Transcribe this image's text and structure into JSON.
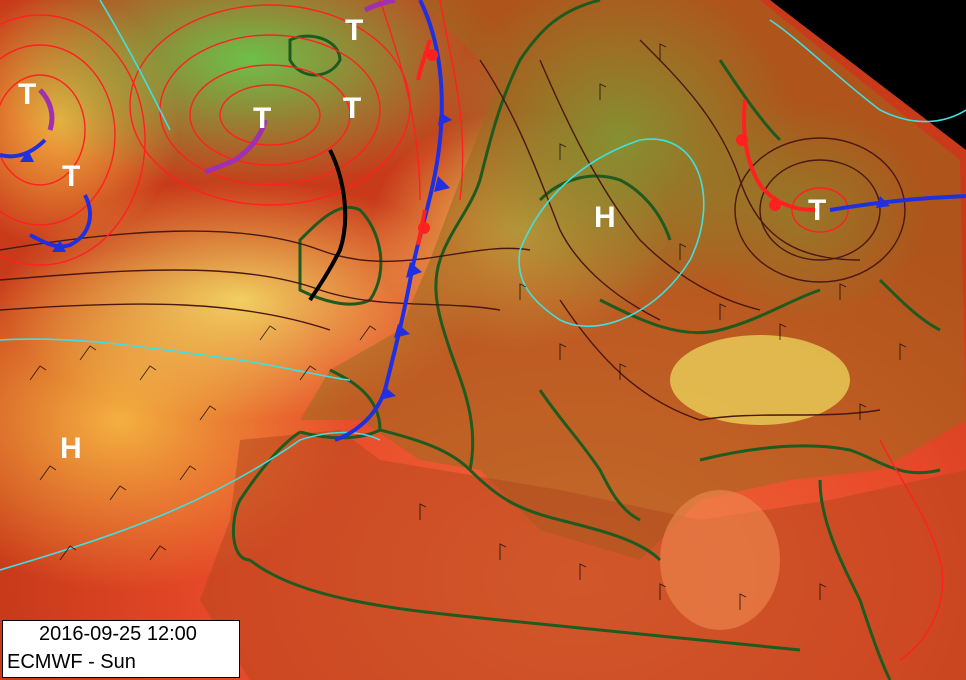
{
  "map": {
    "valid_time": "2016-09-25 12:00",
    "model_label": "ECMWF - Sun",
    "pressure_centers": [
      {
        "kind": "low",
        "letter": "T"
      },
      {
        "kind": "low",
        "letter": "T"
      },
      {
        "kind": "low",
        "letter": "T"
      },
      {
        "kind": "low",
        "letter": "T"
      },
      {
        "kind": "low",
        "letter": "T"
      },
      {
        "kind": "low",
        "letter": "T"
      },
      {
        "kind": "high",
        "letter": "H"
      },
      {
        "kind": "high",
        "letter": "H"
      }
    ],
    "colors": {
      "warm": "#e8462a",
      "mild": "#f2a23a",
      "cool": "#d9d13a",
      "cold": "#7bc24a",
      "land_border": "#1f5a1f",
      "isobar": "#4a1810",
      "isotherm": "#ff2020",
      "cold_front": "#2030e0",
      "occlusion": "#a030b0",
      "trough": "#000000",
      "freezing_line": "#40e0e0"
    }
  }
}
